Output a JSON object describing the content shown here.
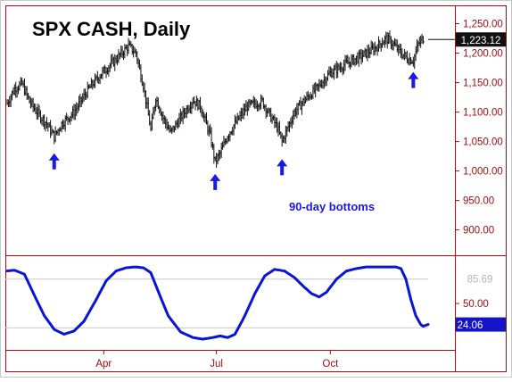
{
  "colors": {
    "frame": "#a01010",
    "price": "#111111",
    "oscillator": "#0a14d8",
    "annotation": "#1a1ae0",
    "last_label_bg": "#1414c8",
    "last_label_text": "#ffffff",
    "ghost_label": "#b4b4b4",
    "guide": "#c8c8c8",
    "axis_text": "#a01010",
    "title_text": "#000000"
  },
  "chart_data": [
    {
      "type": "ohlc",
      "title": "SPX CASH, Daily",
      "y_tick_labels": [
        "1,250.00",
        "1,200.00",
        "1,150.00",
        "1,100.00",
        "1,050.00",
        "1,000.00",
        "950.00",
        "900.00"
      ],
      "y_ticks": [
        1250,
        1200,
        1150,
        1100,
        1050,
        1000,
        950,
        900
      ],
      "ylim": [
        860,
        1275
      ],
      "last_value": 1223.12,
      "last_value_label": "1,223.12",
      "x_months": [
        {
          "label": "Apr",
          "day": 78
        },
        {
          "label": "Jul",
          "day": 169
        },
        {
          "label": "Oct",
          "day": 261
        }
      ],
      "series_knots": [
        [
          0,
          1115
        ],
        [
          6,
          1140
        ],
        [
          12,
          1148
        ],
        [
          18,
          1118
        ],
        [
          24,
          1100
        ],
        [
          32,
          1080
        ],
        [
          38,
          1058
        ],
        [
          44,
          1080
        ],
        [
          54,
          1100
        ],
        [
          66,
          1140
        ],
        [
          76,
          1165
        ],
        [
          88,
          1190
        ],
        [
          98,
          1212
        ],
        [
          104,
          1200
        ],
        [
          110,
          1145
        ],
        [
          116,
          1070
        ],
        [
          120,
          1125
        ],
        [
          126,
          1090
        ],
        [
          132,
          1065
        ],
        [
          140,
          1090
        ],
        [
          150,
          1120
        ],
        [
          156,
          1110
        ],
        [
          164,
          1060
        ],
        [
          168,
          1015
        ],
        [
          172,
          1030
        ],
        [
          178,
          1060
        ],
        [
          184,
          1080
        ],
        [
          194,
          1110
        ],
        [
          206,
          1118
        ],
        [
          212,
          1095
        ],
        [
          218,
          1075
        ],
        [
          222,
          1050
        ],
        [
          226,
          1070
        ],
        [
          232,
          1100
        ],
        [
          240,
          1120
        ],
        [
          250,
          1140
        ],
        [
          260,
          1165
        ],
        [
          272,
          1180
        ],
        [
          286,
          1195
        ],
        [
          298,
          1210
        ],
        [
          306,
          1225
        ],
        [
          312,
          1215
        ],
        [
          318,
          1200
        ],
        [
          324,
          1190
        ],
        [
          328,
          1188
        ],
        [
          332,
          1215
        ],
        [
          336,
          1225
        ]
      ],
      "annotations": {
        "text": "90-day bottoms",
        "arrow_days": [
          38,
          168,
          222,
          328
        ]
      },
      "grid": false
    },
    {
      "type": "line",
      "y_tick_labels": [
        "50.00"
      ],
      "y_ticks": [
        50
      ],
      "guide_levels": [
        80,
        20
      ],
      "ghost_label": "85.69",
      "ylim": [
        -5,
        105
      ],
      "last_value": 24.06,
      "last_value_label": "24.06",
      "series_knots": [
        [
          0,
          90
        ],
        [
          6,
          91
        ],
        [
          14,
          86
        ],
        [
          22,
          60
        ],
        [
          30,
          35
        ],
        [
          38,
          18
        ],
        [
          46,
          12
        ],
        [
          54,
          16
        ],
        [
          62,
          28
        ],
        [
          72,
          55
        ],
        [
          80,
          78
        ],
        [
          88,
          90
        ],
        [
          96,
          94
        ],
        [
          104,
          95
        ],
        [
          110,
          94
        ],
        [
          116,
          88
        ],
        [
          122,
          65
        ],
        [
          130,
          35
        ],
        [
          140,
          15
        ],
        [
          150,
          8
        ],
        [
          158,
          6
        ],
        [
          166,
          8
        ],
        [
          172,
          10
        ],
        [
          178,
          8
        ],
        [
          184,
          12
        ],
        [
          192,
          35
        ],
        [
          200,
          62
        ],
        [
          208,
          84
        ],
        [
          216,
          92
        ],
        [
          224,
          90
        ],
        [
          232,
          82
        ],
        [
          240,
          70
        ],
        [
          246,
          62
        ],
        [
          252,
          58
        ],
        [
          258,
          64
        ],
        [
          266,
          80
        ],
        [
          274,
          90
        ],
        [
          282,
          93
        ],
        [
          290,
          95
        ],
        [
          298,
          95
        ],
        [
          306,
          95
        ],
        [
          314,
          95
        ],
        [
          318,
          93
        ],
        [
          322,
          80
        ],
        [
          326,
          55
        ],
        [
          330,
          35
        ],
        [
          334,
          24
        ],
        [
          336,
          22
        ],
        [
          340,
          24
        ]
      ],
      "grid": false
    }
  ]
}
